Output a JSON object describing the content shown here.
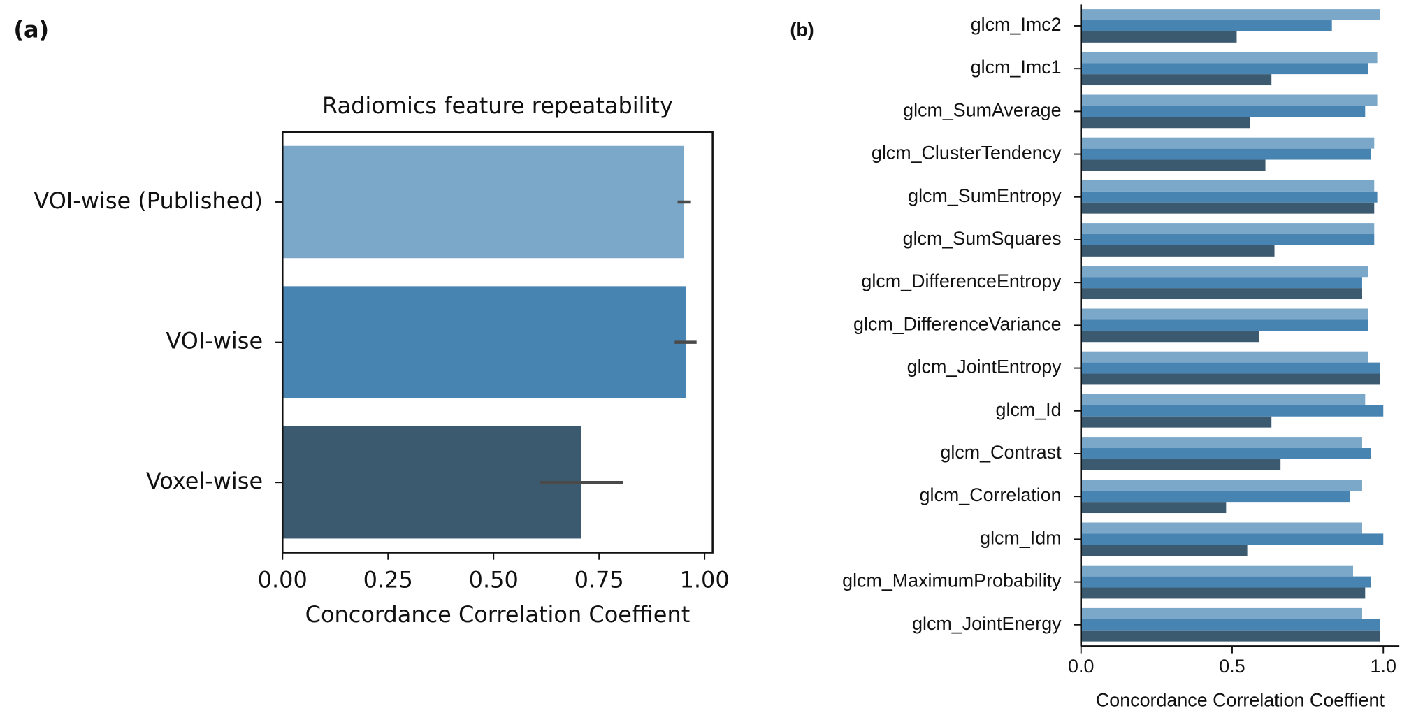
{
  "chart_data": [
    {
      "type": "barh",
      "panel_label": "(a)",
      "title": "Radiomics feature repeatability",
      "x_label": "Concordance Correlation Coeffient",
      "categories": [
        "VOI-wise (Published)",
        "VOI-wise",
        "Voxel-wise"
      ],
      "values": [
        0.951,
        0.955,
        0.708
      ],
      "errors": [
        0.015,
        0.026,
        0.098
      ],
      "colors": [
        "#7ba7c8",
        "#4884b2",
        "#3b5a70"
      ],
      "error_color": "#4a4a4a",
      "xlim": [
        0,
        1.019
      ],
      "xticks": [
        {
          "value": 0,
          "label": "0.00"
        },
        {
          "value": 0.25,
          "label": "0.25"
        },
        {
          "value": 0.5,
          "label": "0.50"
        },
        {
          "value": 0.75,
          "label": "0.75"
        },
        {
          "value": 1,
          "label": "1.00"
        }
      ],
      "frame": true
    },
    {
      "type": "barh",
      "panel_label": "(b)",
      "x_label": "Concordance Correlation Coeffient",
      "categories": [
        "glcm_Imc2",
        "glcm_Imc1",
        "glcm_SumAverage",
        "glcm_ClusterTendency",
        "glcm_SumEntropy",
        "glcm_SumSquares",
        "glcm_DifferenceEntropy",
        "glcm_DifferenceVariance",
        "glcm_JointEntropy",
        "glcm_Id",
        "glcm_Contrast",
        "glcm_Correlation",
        "glcm_Idm",
        "glcm_MaximumProbability",
        "glcm_JointEnergy"
      ],
      "series": [
        {
          "color": "#7ba7c8",
          "values": [
            0.99,
            0.98,
            0.98,
            0.97,
            0.97,
            0.97,
            0.95,
            0.95,
            0.95,
            0.94,
            0.93,
            0.93,
            0.93,
            0.9,
            0.93
          ]
        },
        {
          "color": "#4884b2",
          "values": [
            0.83,
            0.95,
            0.94,
            0.96,
            0.98,
            0.97,
            0.93,
            0.95,
            0.99,
            1.0,
            0.96,
            0.89,
            1.0,
            0.96,
            0.99
          ]
        },
        {
          "color": "#3b5a70",
          "values": [
            0.515,
            0.63,
            0.56,
            0.61,
            0.97,
            0.64,
            0.93,
            0.59,
            0.99,
            0.63,
            0.66,
            0.48,
            0.55,
            0.94,
            0.99
          ]
        }
      ],
      "xlim": [
        0,
        1.053
      ],
      "xticks": [
        {
          "value": 0,
          "label": "0.0"
        },
        0.5,
        {
          "value": 1,
          "label": "1.0"
        }
      ],
      "frame": false
    }
  ]
}
